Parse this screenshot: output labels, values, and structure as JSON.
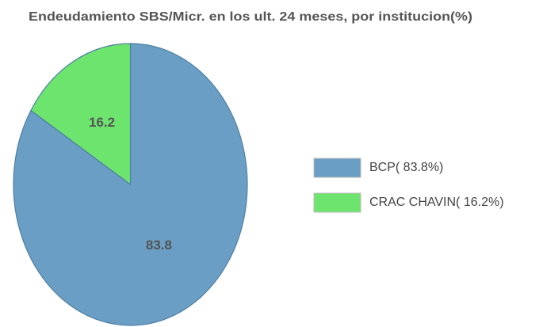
{
  "chart_data": {
    "type": "pie",
    "title": "Endeudamiento SBS/Micr. en los ult. 24 meses, por institucion(%)",
    "categories": [
      "BCP",
      "CRAC CHAVIN"
    ],
    "values": [
      83.8,
      16.2
    ],
    "colors": [
      "#6a9ec4",
      "#6de46d"
    ],
    "legend_labels": [
      "BCP( 83.8%)",
      "CRAC CHAVIN( 16.2%)"
    ],
    "legend": "right"
  }
}
